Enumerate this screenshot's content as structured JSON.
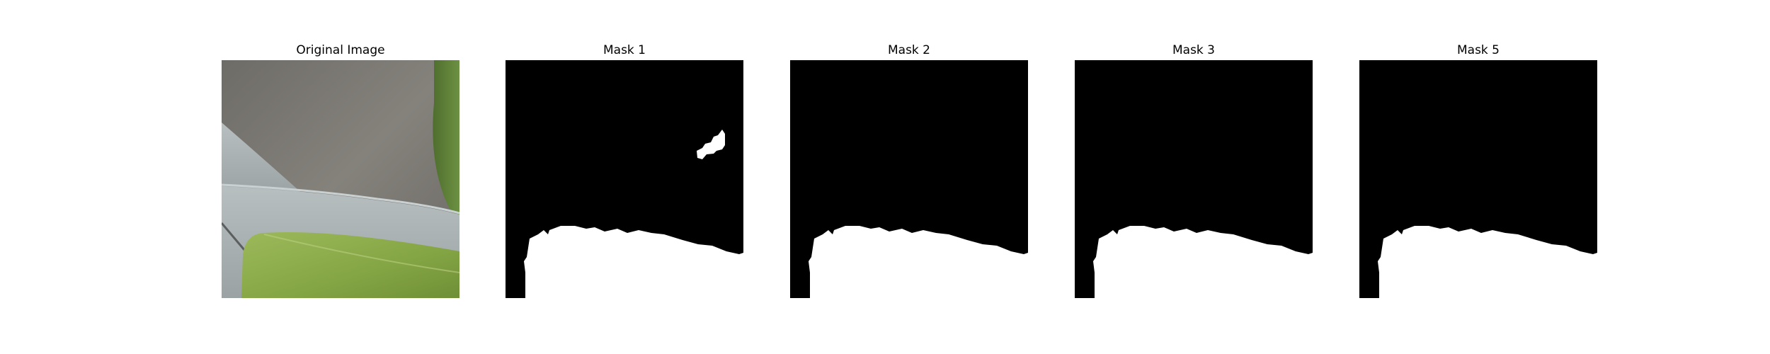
{
  "figure": {
    "panels": [
      {
        "title": "Original Image",
        "kind": "photo"
      },
      {
        "title": "Mask 1",
        "kind": "mask"
      },
      {
        "title": "Mask 2",
        "kind": "mask"
      },
      {
        "title": "Mask 3",
        "kind": "mask"
      },
      {
        "title": "Mask 5",
        "kind": "mask"
      }
    ]
  },
  "colors": {
    "background": "#ffffff",
    "mask_background": "#000000",
    "mask_foreground": "#ffffff",
    "wall": "#7a7772",
    "pot": "#a9b0b1",
    "leaf": "#8aa94a"
  }
}
